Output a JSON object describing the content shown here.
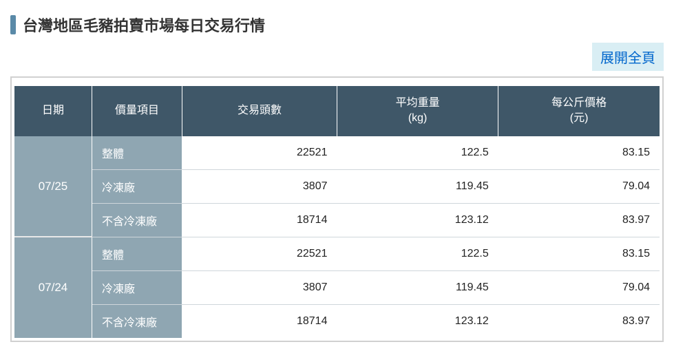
{
  "title": "台灣地區毛豬拍賣市場每日交易行情",
  "expand_label": "展開全頁",
  "columns": {
    "date": "日期",
    "category": "價量項目",
    "volume": "交易頭數",
    "weight_l1": "平均重量",
    "weight_l2": "(kg)",
    "price_l1": "每公斤價格",
    "price_l2": "(元)"
  },
  "groups": [
    {
      "date": "07/25",
      "rows": [
        {
          "cat": "整體",
          "vol": "22521",
          "wt": "122.5",
          "pr": "83.15"
        },
        {
          "cat": "冷凍廠",
          "vol": "3807",
          "wt": "119.45",
          "pr": "79.04"
        },
        {
          "cat": "不含冷凍廠",
          "vol": "18714",
          "wt": "123.12",
          "pr": "83.97"
        }
      ]
    },
    {
      "date": "07/24",
      "rows": [
        {
          "cat": "整體",
          "vol": "22521",
          "wt": "122.5",
          "pr": "83.15"
        },
        {
          "cat": "冷凍廠",
          "vol": "3807",
          "wt": "119.45",
          "pr": "79.04"
        },
        {
          "cat": "不含冷凍廠",
          "vol": "18714",
          "wt": "123.12",
          "pr": "83.97"
        }
      ]
    }
  ],
  "colors": {
    "header_bg": "#3f5768",
    "subheader_bg": "#8fa6b2",
    "accent_bar": "#5a8aa8",
    "link_bg": "#d9eef4",
    "link_fg": "#0066cc",
    "border": "#d0d0d0",
    "row_border": "#cfd6db",
    "text": "#222222"
  }
}
